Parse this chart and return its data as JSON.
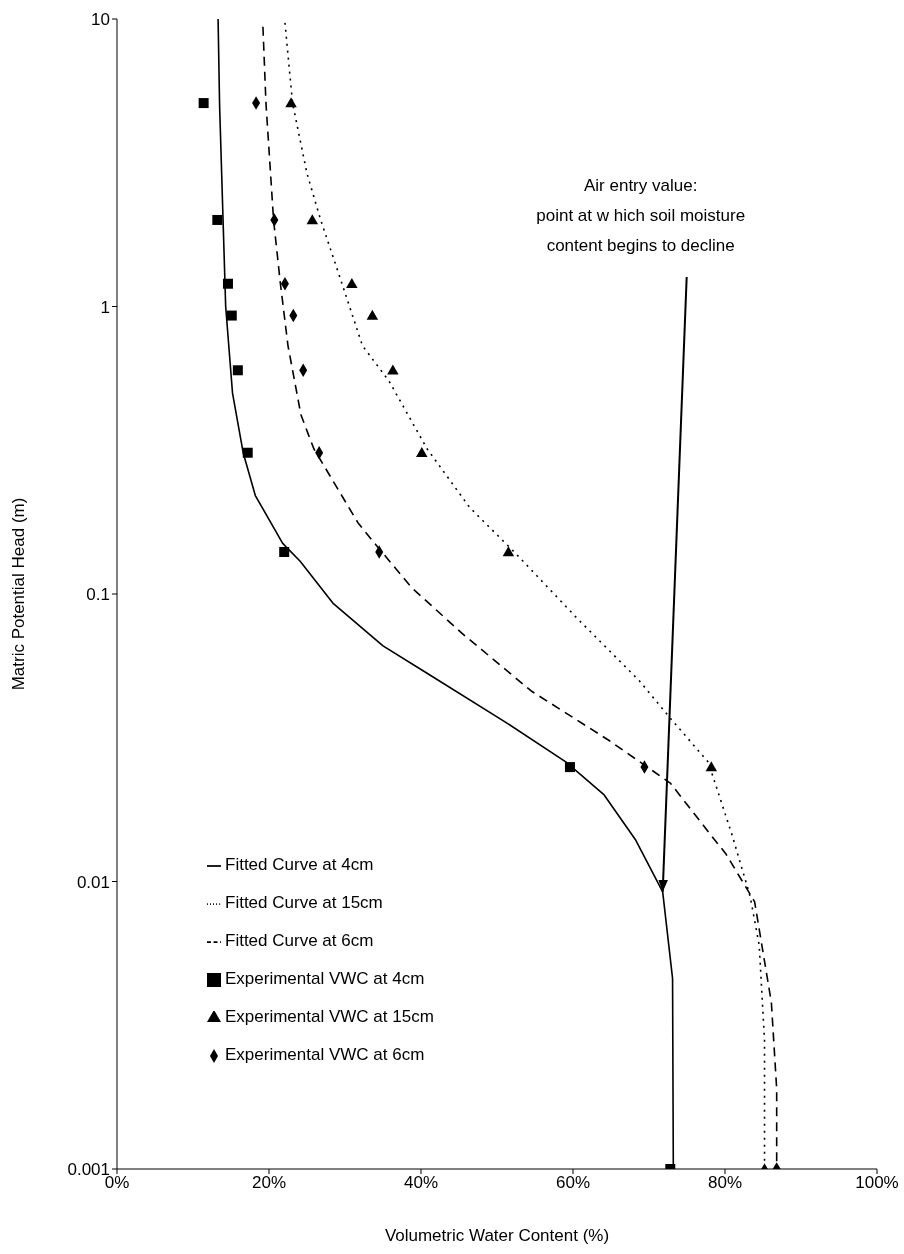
{
  "chart_data": {
    "type": "line",
    "xlabel": "Volumetric Water Content (%)",
    "ylabel": "Matric Potential Head (m)",
    "xlim": [
      0,
      100
    ],
    "xticks": [
      {
        "value": 0,
        "label": "0%"
      },
      {
        "value": 20,
        "label": "20%"
      },
      {
        "value": 40,
        "label": "40%"
      },
      {
        "value": 60,
        "label": "60%"
      },
      {
        "value": 80,
        "label": "80%"
      },
      {
        "value": 100,
        "label": "100%"
      }
    ],
    "ylim": [
      0.001,
      10
    ],
    "yticks": [
      0.001,
      0.01,
      0.1,
      1,
      10
    ],
    "log": "y",
    "grid": false,
    "legend": "bottom left",
    "annotations": [
      {
        "text": "Air entry value:\npoint at w hich soil moisture\ncontent begins to decline",
        "x": 71.8,
        "y": 0.0092
      }
    ],
    "series": [
      {
        "type": "line",
        "name": "Fitted Curve at 4cm",
        "color": "#000000",
        "line_style": "solid",
        "marker": "none",
        "x": [
          13.3,
          13.5,
          14.3,
          15.2,
          16.6,
          18.2,
          21.8,
          24.1,
          28.4,
          35.0,
          40.8,
          51.0,
          59.1,
          64.1,
          68.2,
          71.8,
          73.1,
          73.2
        ],
        "values": [
          10,
          5,
          1,
          0.5,
          0.31,
          0.22,
          0.15,
          0.13,
          0.093,
          0.066,
          0.053,
          0.036,
          0.026,
          0.02,
          0.014,
          0.0092,
          0.0046,
          0.001
        ]
      },
      {
        "type": "line",
        "name": "Fitted Curve at 15cm",
        "color": "#000000",
        "line_style": "dotted",
        "marker": "none",
        "x": [
          22.1,
          23.1,
          25.0,
          26.8,
          29.3,
          32.3,
          35.8,
          40.8,
          46.4,
          52.5,
          60.6,
          68.7,
          72.8,
          77.8,
          80.9,
          83.3,
          84.5,
          85.2,
          85.2
        ],
        "values": [
          9.7,
          5.1,
          2.9,
          2.0,
          1.27,
          0.73,
          0.55,
          0.32,
          0.2,
          0.138,
          0.082,
          0.05,
          0.037,
          0.026,
          0.0146,
          0.0089,
          0.006,
          0.0028,
          0.001
        ]
      },
      {
        "type": "line",
        "name": "Fitted Curve at 6cm",
        "color": "#000000",
        "line_style": "dashed",
        "marker": "none",
        "x": [
          19.2,
          19.6,
          20.6,
          21.5,
          22.5,
          24.2,
          25.9,
          31.7,
          33.9,
          38.8,
          45.4,
          54.5,
          64.7,
          72.8,
          78.6,
          80.1,
          83.9,
          86.1,
          86.8,
          86.8
        ],
        "values": [
          9.4,
          5.1,
          2,
          1.2,
          0.73,
          0.42,
          0.32,
          0.177,
          0.15,
          0.105,
          0.073,
          0.046,
          0.031,
          0.022,
          0.014,
          0.0125,
          0.0085,
          0.0038,
          0.0019,
          0.001
        ]
      },
      {
        "type": "scatter",
        "name": "Experimental VWC at 4cm",
        "color": "#000000",
        "marker": "square",
        "x": [
          11.4,
          13.2,
          14.6,
          15.1,
          15.9,
          17.2,
          22.0,
          59.6,
          72.8
        ],
        "values": [
          5.1,
          2,
          1.2,
          0.93,
          0.6,
          0.31,
          0.14,
          0.025,
          0.001
        ]
      },
      {
        "type": "scatter",
        "name": "Experimental VWC at 15cm",
        "color": "#000000",
        "marker": "triangle",
        "x": [
          22.9,
          25.7,
          30.9,
          33.6,
          36.3,
          40.1,
          51.5,
          78.2,
          85.2
        ],
        "values": [
          5.1,
          2,
          1.2,
          0.93,
          0.6,
          0.31,
          0.14,
          0.025,
          0.001
        ]
      },
      {
        "type": "scatter",
        "name": "Experimental VWC at 6cm",
        "color": "#000000",
        "marker": "diamond",
        "x": [
          18.3,
          20.7,
          22.1,
          23.2,
          24.5,
          26.6,
          34.5,
          69.4,
          86.8
        ],
        "values": [
          5.1,
          2,
          1.2,
          0.93,
          0.6,
          0.31,
          0.14,
          0.025,
          0.001
        ]
      }
    ]
  }
}
